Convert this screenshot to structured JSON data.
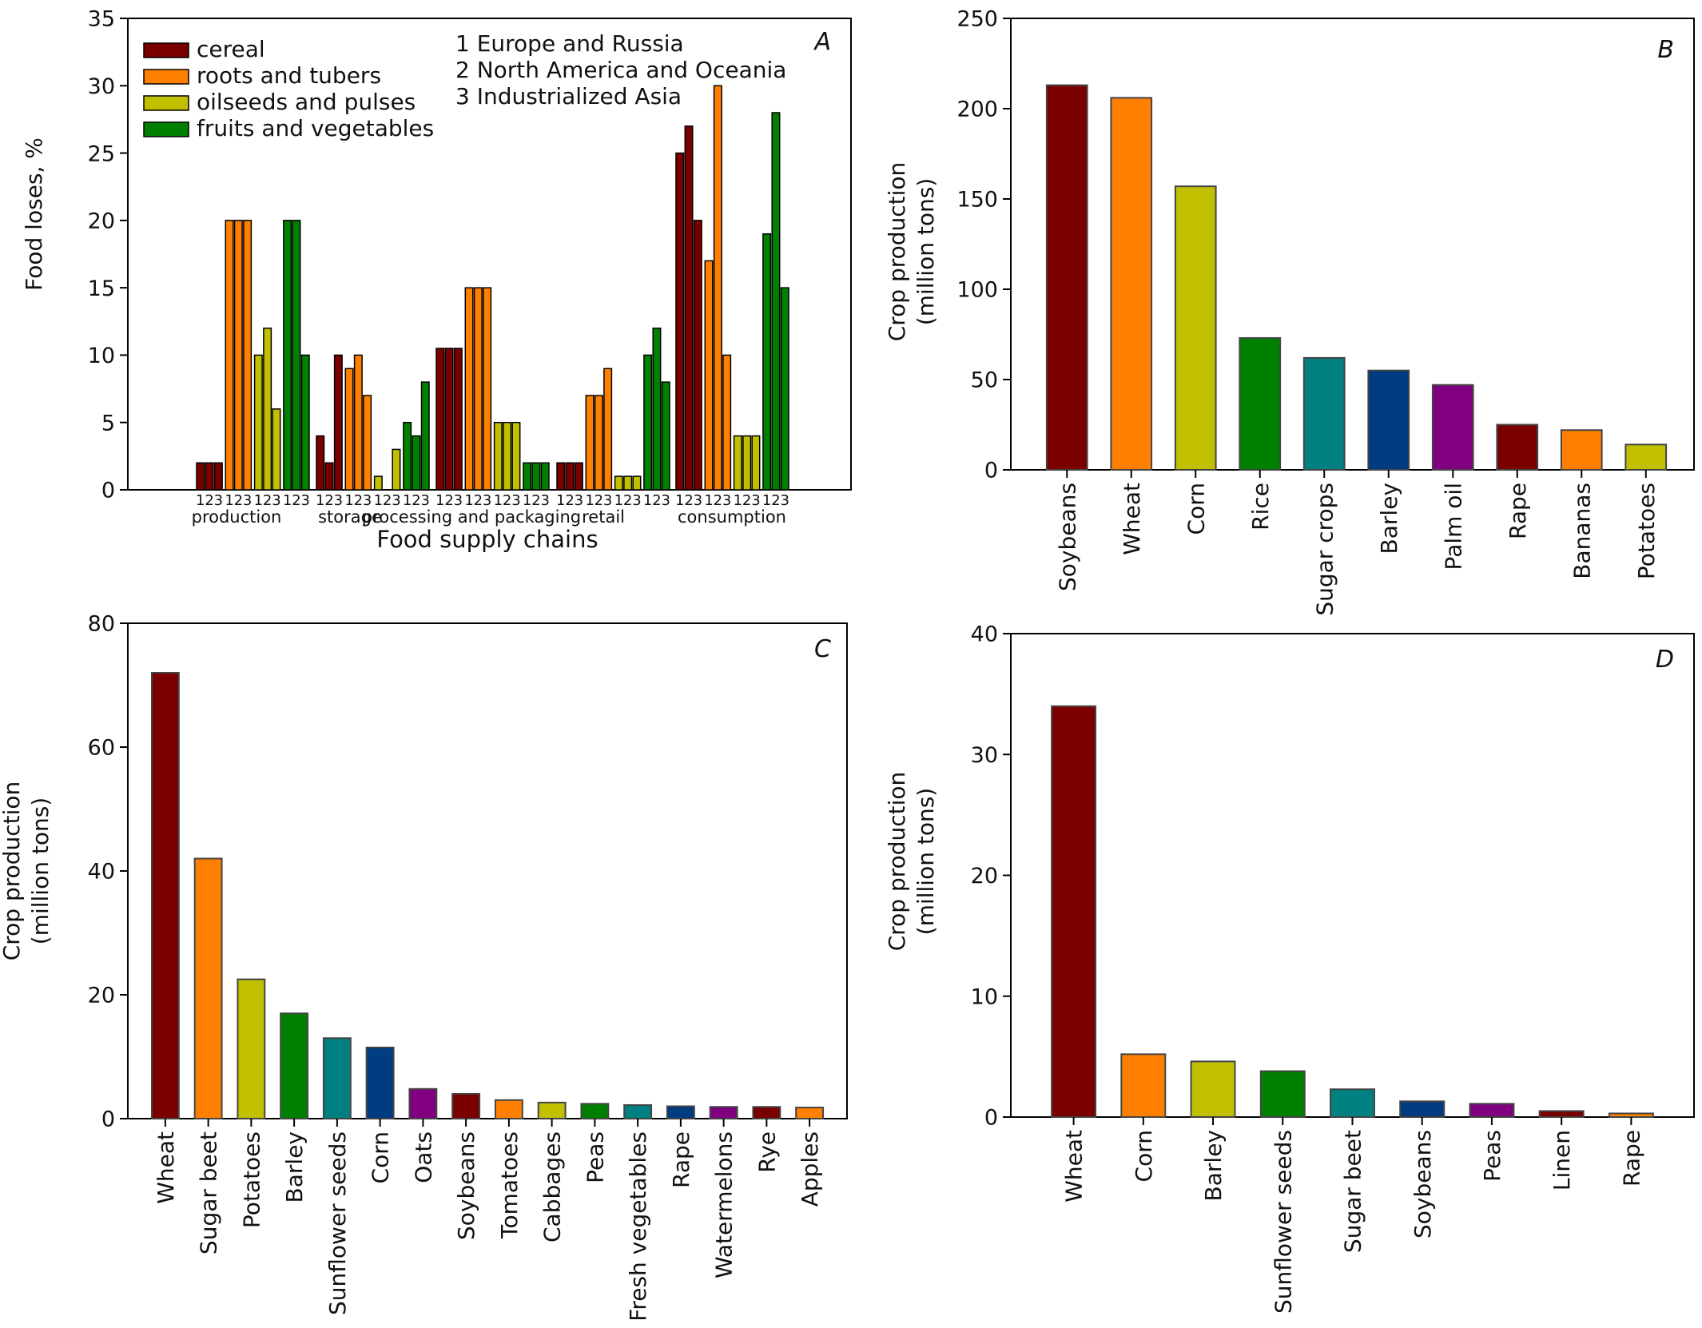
{
  "chart_data": [
    {
      "panel": "A",
      "type": "bar",
      "xlabel": "Food supply chains",
      "ylabel": "Food loses, %",
      "ylim": [
        0,
        35
      ],
      "yticks": [
        0,
        5,
        10,
        15,
        20,
        25,
        30,
        35
      ],
      "stages": [
        "production",
        "storage",
        "processing and packaging",
        "retail",
        "consumption"
      ],
      "stage_labels": [
        "production",
        "storage",
        "processing and packaging",
        "retail",
        "consumption"
      ],
      "region_index_labels": [
        "1",
        "2",
        "3"
      ],
      "regions": [
        "1 Europe and Russia",
        "2 North America and Oceania",
        "3 Industrialized Asia"
      ],
      "series": [
        {
          "name": "cereal",
          "color": "#7a0000",
          "values": [
            [
              2,
              2,
              2
            ],
            [
              4,
              2,
              10
            ],
            [
              10.5,
              10.5,
              10.5
            ],
            [
              2,
              2,
              2
            ],
            [
              25,
              27,
              20
            ]
          ]
        },
        {
          "name": "roots and tubers",
          "color": "#ff8000",
          "values": [
            [
              20,
              20,
              20
            ],
            [
              9,
              10,
              7
            ],
            [
              15,
              15,
              15
            ],
            [
              7,
              7,
              9
            ],
            [
              17,
              30,
              10
            ]
          ]
        },
        {
          "name": "oilseeds and pulses",
          "color": "#c0c000",
          "values": [
            [
              10,
              12,
              6
            ],
            [
              1,
              0,
              3
            ],
            [
              5,
              5,
              5
            ],
            [
              1,
              1,
              1
            ],
            [
              4,
              4,
              4
            ]
          ]
        },
        {
          "name": "fruits and vegetables",
          "color": "#008000",
          "values": [
            [
              20,
              20,
              10
            ],
            [
              5,
              4,
              8
            ],
            [
              2,
              2,
              2
            ],
            [
              10,
              12,
              8
            ],
            [
              19,
              28,
              15
            ]
          ]
        }
      ],
      "legend_position": "top-left"
    },
    {
      "panel": "B",
      "type": "bar",
      "ylabel_lines": [
        "Crop production",
        "(million tons)"
      ],
      "ylim": [
        0,
        250
      ],
      "yticks": [
        0,
        50,
        100,
        150,
        200,
        250
      ],
      "categories": [
        "Soybeans",
        "Wheat",
        "Corn",
        "Rice",
        "Sugar crops",
        "Barley",
        "Palm oil",
        "Rape",
        "Bananas",
        "Potatoes"
      ],
      "values": [
        213,
        206,
        157,
        73,
        62,
        55,
        47,
        25,
        22,
        14
      ],
      "colors": [
        "#7a0000",
        "#ff8000",
        "#c0c000",
        "#008000",
        "#008080",
        "#003c80",
        "#800080",
        "#7a0000",
        "#ff8000",
        "#c0c000"
      ]
    },
    {
      "panel": "C",
      "type": "bar",
      "ylabel_lines": [
        "Crop production",
        "(million tons)"
      ],
      "ylim": [
        0,
        80
      ],
      "yticks": [
        0,
        20,
        40,
        60,
        80
      ],
      "categories": [
        "Wheat",
        "Sugar beet",
        "Potatoes",
        "Barley",
        "Sunflower seeds",
        "Corn",
        "Oats",
        "Soybeans",
        "Tomatoes",
        "Cabbages",
        "Peas",
        "Fresh vegetables",
        "Rape",
        "Watermelons",
        "Rye",
        "Apples"
      ],
      "values": [
        72,
        42,
        22.5,
        17,
        13,
        11.5,
        4.8,
        4,
        3,
        2.6,
        2.4,
        2.2,
        2,
        1.9,
        1.9,
        1.8
      ],
      "colors": [
        "#7a0000",
        "#ff8000",
        "#c0c000",
        "#008000",
        "#008080",
        "#003c80",
        "#800080",
        "#7a0000",
        "#ff8000",
        "#c0c000",
        "#008000",
        "#008080",
        "#003c80",
        "#800080",
        "#7a0000",
        "#ff8000"
      ]
    },
    {
      "panel": "D",
      "type": "bar",
      "ylabel_lines": [
        "Crop production",
        "(million tons)"
      ],
      "ylim": [
        0,
        40
      ],
      "yticks": [
        0,
        10,
        20,
        30,
        40
      ],
      "categories": [
        "Wheat",
        "Corn",
        "Barley",
        "Sunflower seeds",
        "Sugar beet",
        "Soybeans",
        "Peas",
        "Linen",
        "Rape"
      ],
      "values": [
        34,
        5.2,
        4.6,
        3.8,
        2.3,
        1.3,
        1.1,
        0.5,
        0.3
      ],
      "colors": [
        "#7a0000",
        "#ff8000",
        "#c0c000",
        "#008000",
        "#008080",
        "#003c80",
        "#800080",
        "#7a0000",
        "#ff8000"
      ]
    }
  ]
}
